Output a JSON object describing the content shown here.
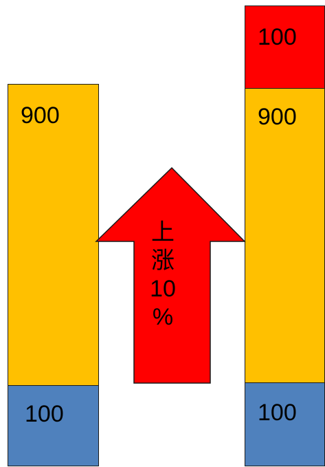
{
  "colors": {
    "increase": "#ff0000",
    "base": "#ffc000",
    "small": "#4f81bd"
  },
  "before": {
    "upper_value": "900",
    "lower_value": "100"
  },
  "after": {
    "added_value": "100",
    "upper_value": "900",
    "lower_value": "100"
  },
  "arrow": {
    "line1": "上",
    "line2": "涨",
    "line3": "10",
    "line4": "%"
  }
}
